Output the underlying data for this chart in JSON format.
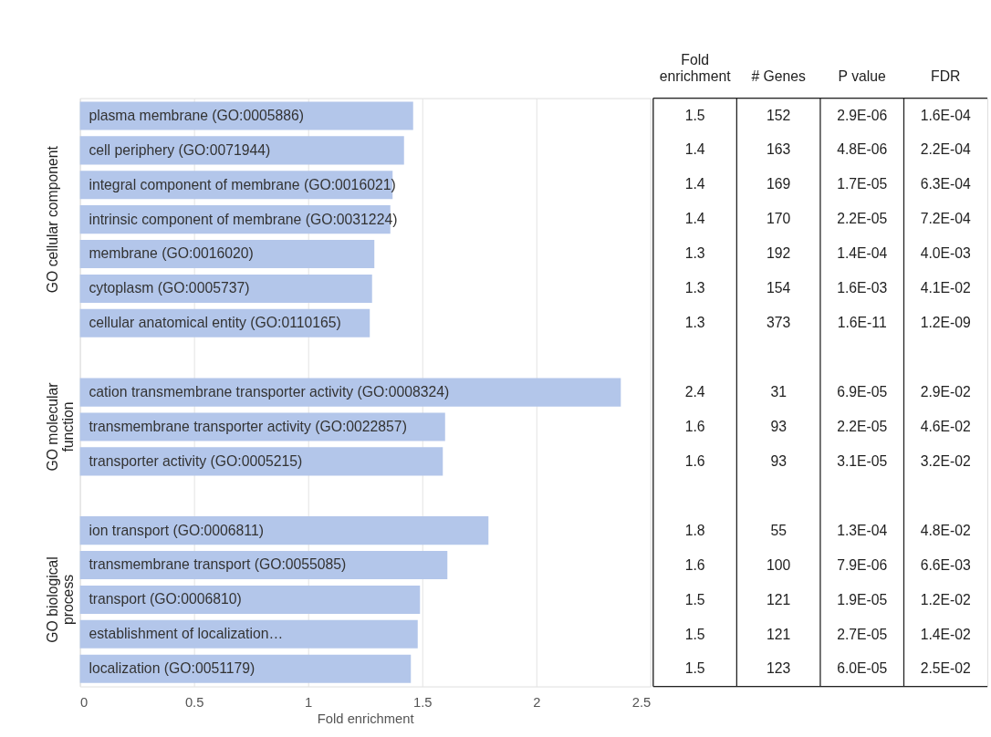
{
  "chart_data": [
    {
      "type": "bar",
      "orientation": "horizontal",
      "xlabel": "Fold enrichment",
      "categories": [
        "plasma membrane (GO:0005886)",
        "cell periphery (GO:0071944)",
        "integral component of membrane (GO:0016021)",
        "intrinsic component of membrane (GO:0031224)",
        "membrane (GO:0016020)",
        "cytoplasm (GO:0005737)",
        "cellular anatomical entity (GO:0110165)",
        null,
        "cation transmembrane transporter activity (GO:0008324)",
        "transmembrane transporter activity (GO:0022857)",
        "transporter activity (GO:0005215)",
        null,
        "ion transport (GO:0006811)",
        "transmembrane transport (GO:0055085)",
        "transport (GO:0006810)",
        "establishment of localization…",
        "localization (GO:0051179)"
      ],
      "values": [
        1.46,
        1.42,
        1.37,
        1.36,
        1.29,
        1.28,
        1.27,
        null,
        2.37,
        1.6,
        1.59,
        null,
        1.79,
        1.61,
        1.49,
        1.48,
        1.45
      ],
      "color": "#b3c6ea",
      "xlim": [
        0,
        2.5
      ],
      "xticks": [
        0,
        0.5,
        1,
        1.5,
        2,
        2.5
      ],
      "grid": "x",
      "annotations": [
        "GO cellular component",
        "GO molecular\nfunction",
        "GO biological\nprocess"
      ]
    },
    {
      "type": "other",
      "categories": [
        "Fold\nenrichment",
        "# Genes",
        "P value",
        "FDR"
      ],
      "cell_labels": [
        [
          "1.5",
          "152",
          "2.9E-06",
          "1.6E-04"
        ],
        [
          "1.4",
          "163",
          "4.8E-06",
          "2.2E-04"
        ],
        [
          "1.4",
          "169",
          "1.7E-05",
          "6.3E-04"
        ],
        [
          "1.4",
          "170",
          "2.2E-05",
          "7.2E-04"
        ],
        [
          "1.3",
          "192",
          "1.4E-04",
          "4.0E-03"
        ],
        [
          "1.3",
          "154",
          "1.6E-03",
          "4.1E-02"
        ],
        [
          "1.3",
          "373",
          "1.6E-11",
          "1.2E-09"
        ],
        null,
        [
          "2.4",
          "31",
          "6.9E-05",
          "2.9E-02"
        ],
        [
          "1.6",
          "93",
          "2.2E-05",
          "4.6E-02"
        ],
        [
          "1.6",
          "93",
          "3.1E-05",
          "3.2E-02"
        ],
        null,
        [
          "1.8",
          "55",
          "1.3E-04",
          "4.8E-02"
        ],
        [
          "1.6",
          "100",
          "7.9E-06",
          "6.6E-03"
        ],
        [
          "1.5",
          "121",
          "1.9E-05",
          "1.2E-02"
        ],
        [
          "1.5",
          "121",
          "2.7E-05",
          "1.4E-02"
        ],
        [
          "1.5",
          "123",
          "6.0E-05",
          "2.5E-02"
        ]
      ]
    }
  ]
}
